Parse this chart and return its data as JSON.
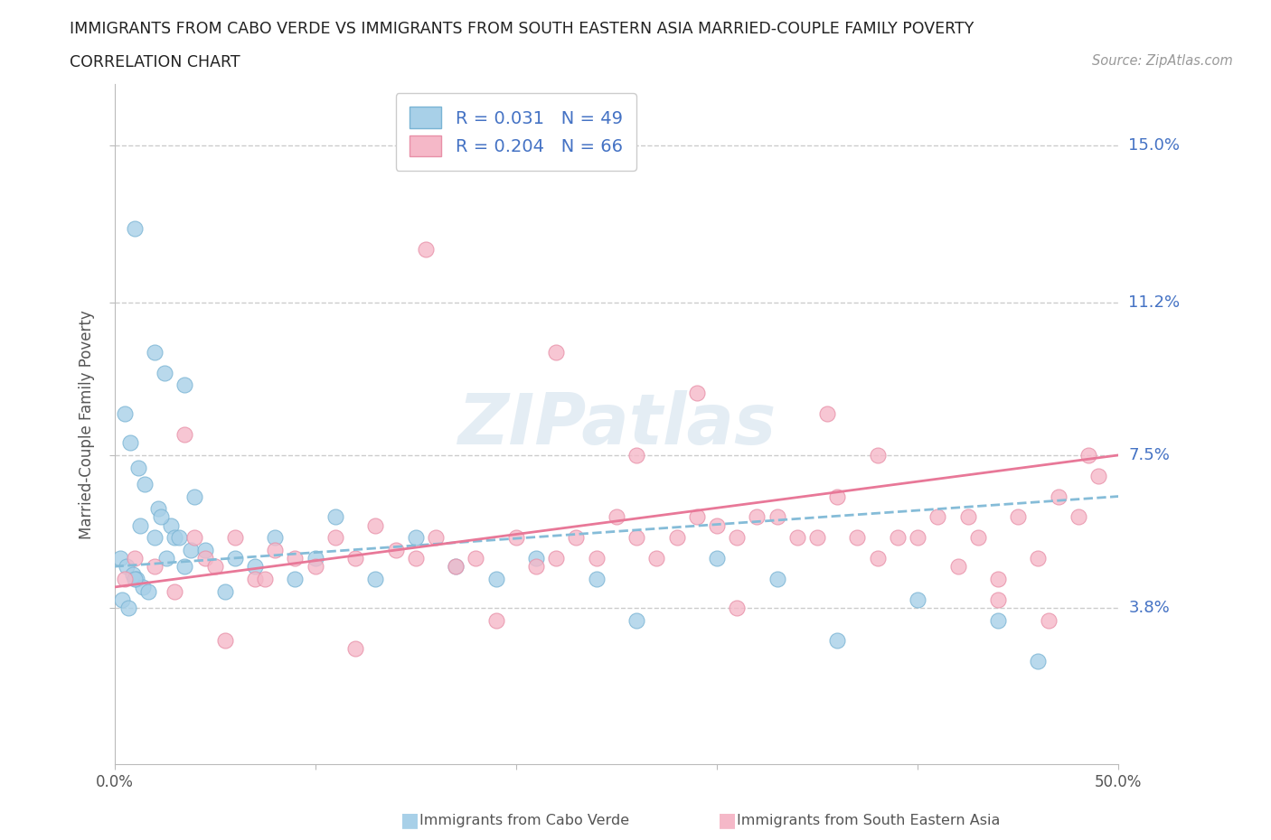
{
  "title_line1": "IMMIGRANTS FROM CABO VERDE VS IMMIGRANTS FROM SOUTH EASTERN ASIA MARRIED-COUPLE FAMILY POVERTY",
  "title_line2": "CORRELATION CHART",
  "source_text": "Source: ZipAtlas.com",
  "ylabel": "Married-Couple Family Poverty",
  "xlim": [
    0,
    50
  ],
  "ylim": [
    0,
    16.5
  ],
  "ytick_vals": [
    3.8,
    7.5,
    11.2,
    15.0
  ],
  "ytick_labels": [
    "3.8%",
    "7.5%",
    "11.2%",
    "15.0%"
  ],
  "xtick_vals": [
    0,
    10,
    20,
    30,
    40,
    50
  ],
  "xtick_labels": [
    "0.0%",
    "",
    "",
    "",
    "",
    "50.0%"
  ],
  "series1_color": "#a8d0e8",
  "series1_edge": "#7ab4d4",
  "series2_color": "#f5b8c8",
  "series2_edge": "#e890a8",
  "trend1_color": "#85bcd8",
  "trend2_color": "#e87898",
  "R1": 0.031,
  "N1": 49,
  "R2": 0.204,
  "N2": 66,
  "label1": "Immigrants from Cabo Verde",
  "label2": "Immigrants from South Eastern Asia",
  "watermark": "ZIPatlas",
  "background_color": "#ffffff",
  "grid_color": "#cccccc",
  "cv_trend_y0": 4.8,
  "cv_trend_y1": 6.5,
  "sea_trend_y0": 4.3,
  "sea_trend_y1": 7.5,
  "cabo_verde_x": [
    1.0,
    2.0,
    2.5,
    3.5,
    0.5,
    0.8,
    1.2,
    1.5,
    2.2,
    2.8,
    3.0,
    3.8,
    0.3,
    0.6,
    0.9,
    1.1,
    1.4,
    1.7,
    2.0,
    2.3,
    2.6,
    3.2,
    3.5,
    4.0,
    4.5,
    0.4,
    0.7,
    1.0,
    1.3,
    5.5,
    6.0,
    7.0,
    8.0,
    9.0,
    10.0,
    11.0,
    13.0,
    15.0,
    17.0,
    19.0,
    21.0,
    24.0,
    26.0,
    30.0,
    33.0,
    36.0,
    40.0,
    44.0,
    46.0
  ],
  "cabo_verde_y": [
    13.0,
    10.0,
    9.5,
    9.2,
    8.5,
    7.8,
    7.2,
    6.8,
    6.2,
    5.8,
    5.5,
    5.2,
    5.0,
    4.8,
    4.6,
    4.5,
    4.3,
    4.2,
    5.5,
    6.0,
    5.0,
    5.5,
    4.8,
    6.5,
    5.2,
    4.0,
    3.8,
    4.5,
    5.8,
    4.2,
    5.0,
    4.8,
    5.5,
    4.5,
    5.0,
    6.0,
    4.5,
    5.5,
    4.8,
    4.5,
    5.0,
    4.5,
    3.5,
    5.0,
    4.5,
    3.0,
    4.0,
    3.5,
    2.5
  ],
  "sea_x": [
    0.5,
    1.0,
    2.0,
    3.0,
    4.0,
    4.5,
    5.0,
    6.0,
    7.0,
    8.0,
    9.0,
    10.0,
    11.0,
    12.0,
    13.0,
    14.0,
    15.0,
    16.0,
    17.0,
    18.0,
    20.0,
    21.0,
    22.0,
    23.0,
    24.0,
    25.0,
    26.0,
    27.0,
    28.0,
    29.0,
    30.0,
    31.0,
    32.0,
    33.0,
    34.0,
    35.0,
    36.0,
    37.0,
    38.0,
    39.0,
    40.0,
    41.0,
    42.0,
    43.0,
    44.0,
    45.0,
    46.0,
    47.0,
    48.0,
    49.0,
    3.5,
    7.5,
    15.5,
    22.0,
    29.0,
    35.5,
    26.0,
    38.0,
    42.5,
    46.5,
    48.5,
    31.0,
    5.5,
    12.0,
    19.0,
    44.0
  ],
  "sea_y": [
    4.5,
    5.0,
    4.8,
    4.2,
    5.5,
    5.0,
    4.8,
    5.5,
    4.5,
    5.2,
    5.0,
    4.8,
    5.5,
    5.0,
    5.8,
    5.2,
    5.0,
    5.5,
    4.8,
    5.0,
    5.5,
    4.8,
    5.0,
    5.5,
    5.0,
    6.0,
    5.5,
    5.0,
    5.5,
    6.0,
    5.8,
    5.5,
    6.0,
    6.0,
    5.5,
    5.5,
    6.5,
    5.5,
    5.0,
    5.5,
    5.5,
    6.0,
    4.8,
    5.5,
    4.5,
    6.0,
    5.0,
    6.5,
    6.0,
    7.0,
    8.0,
    4.5,
    12.5,
    10.0,
    9.0,
    8.5,
    7.5,
    7.5,
    6.0,
    3.5,
    7.5,
    3.8,
    3.0,
    2.8,
    3.5,
    4.0
  ]
}
